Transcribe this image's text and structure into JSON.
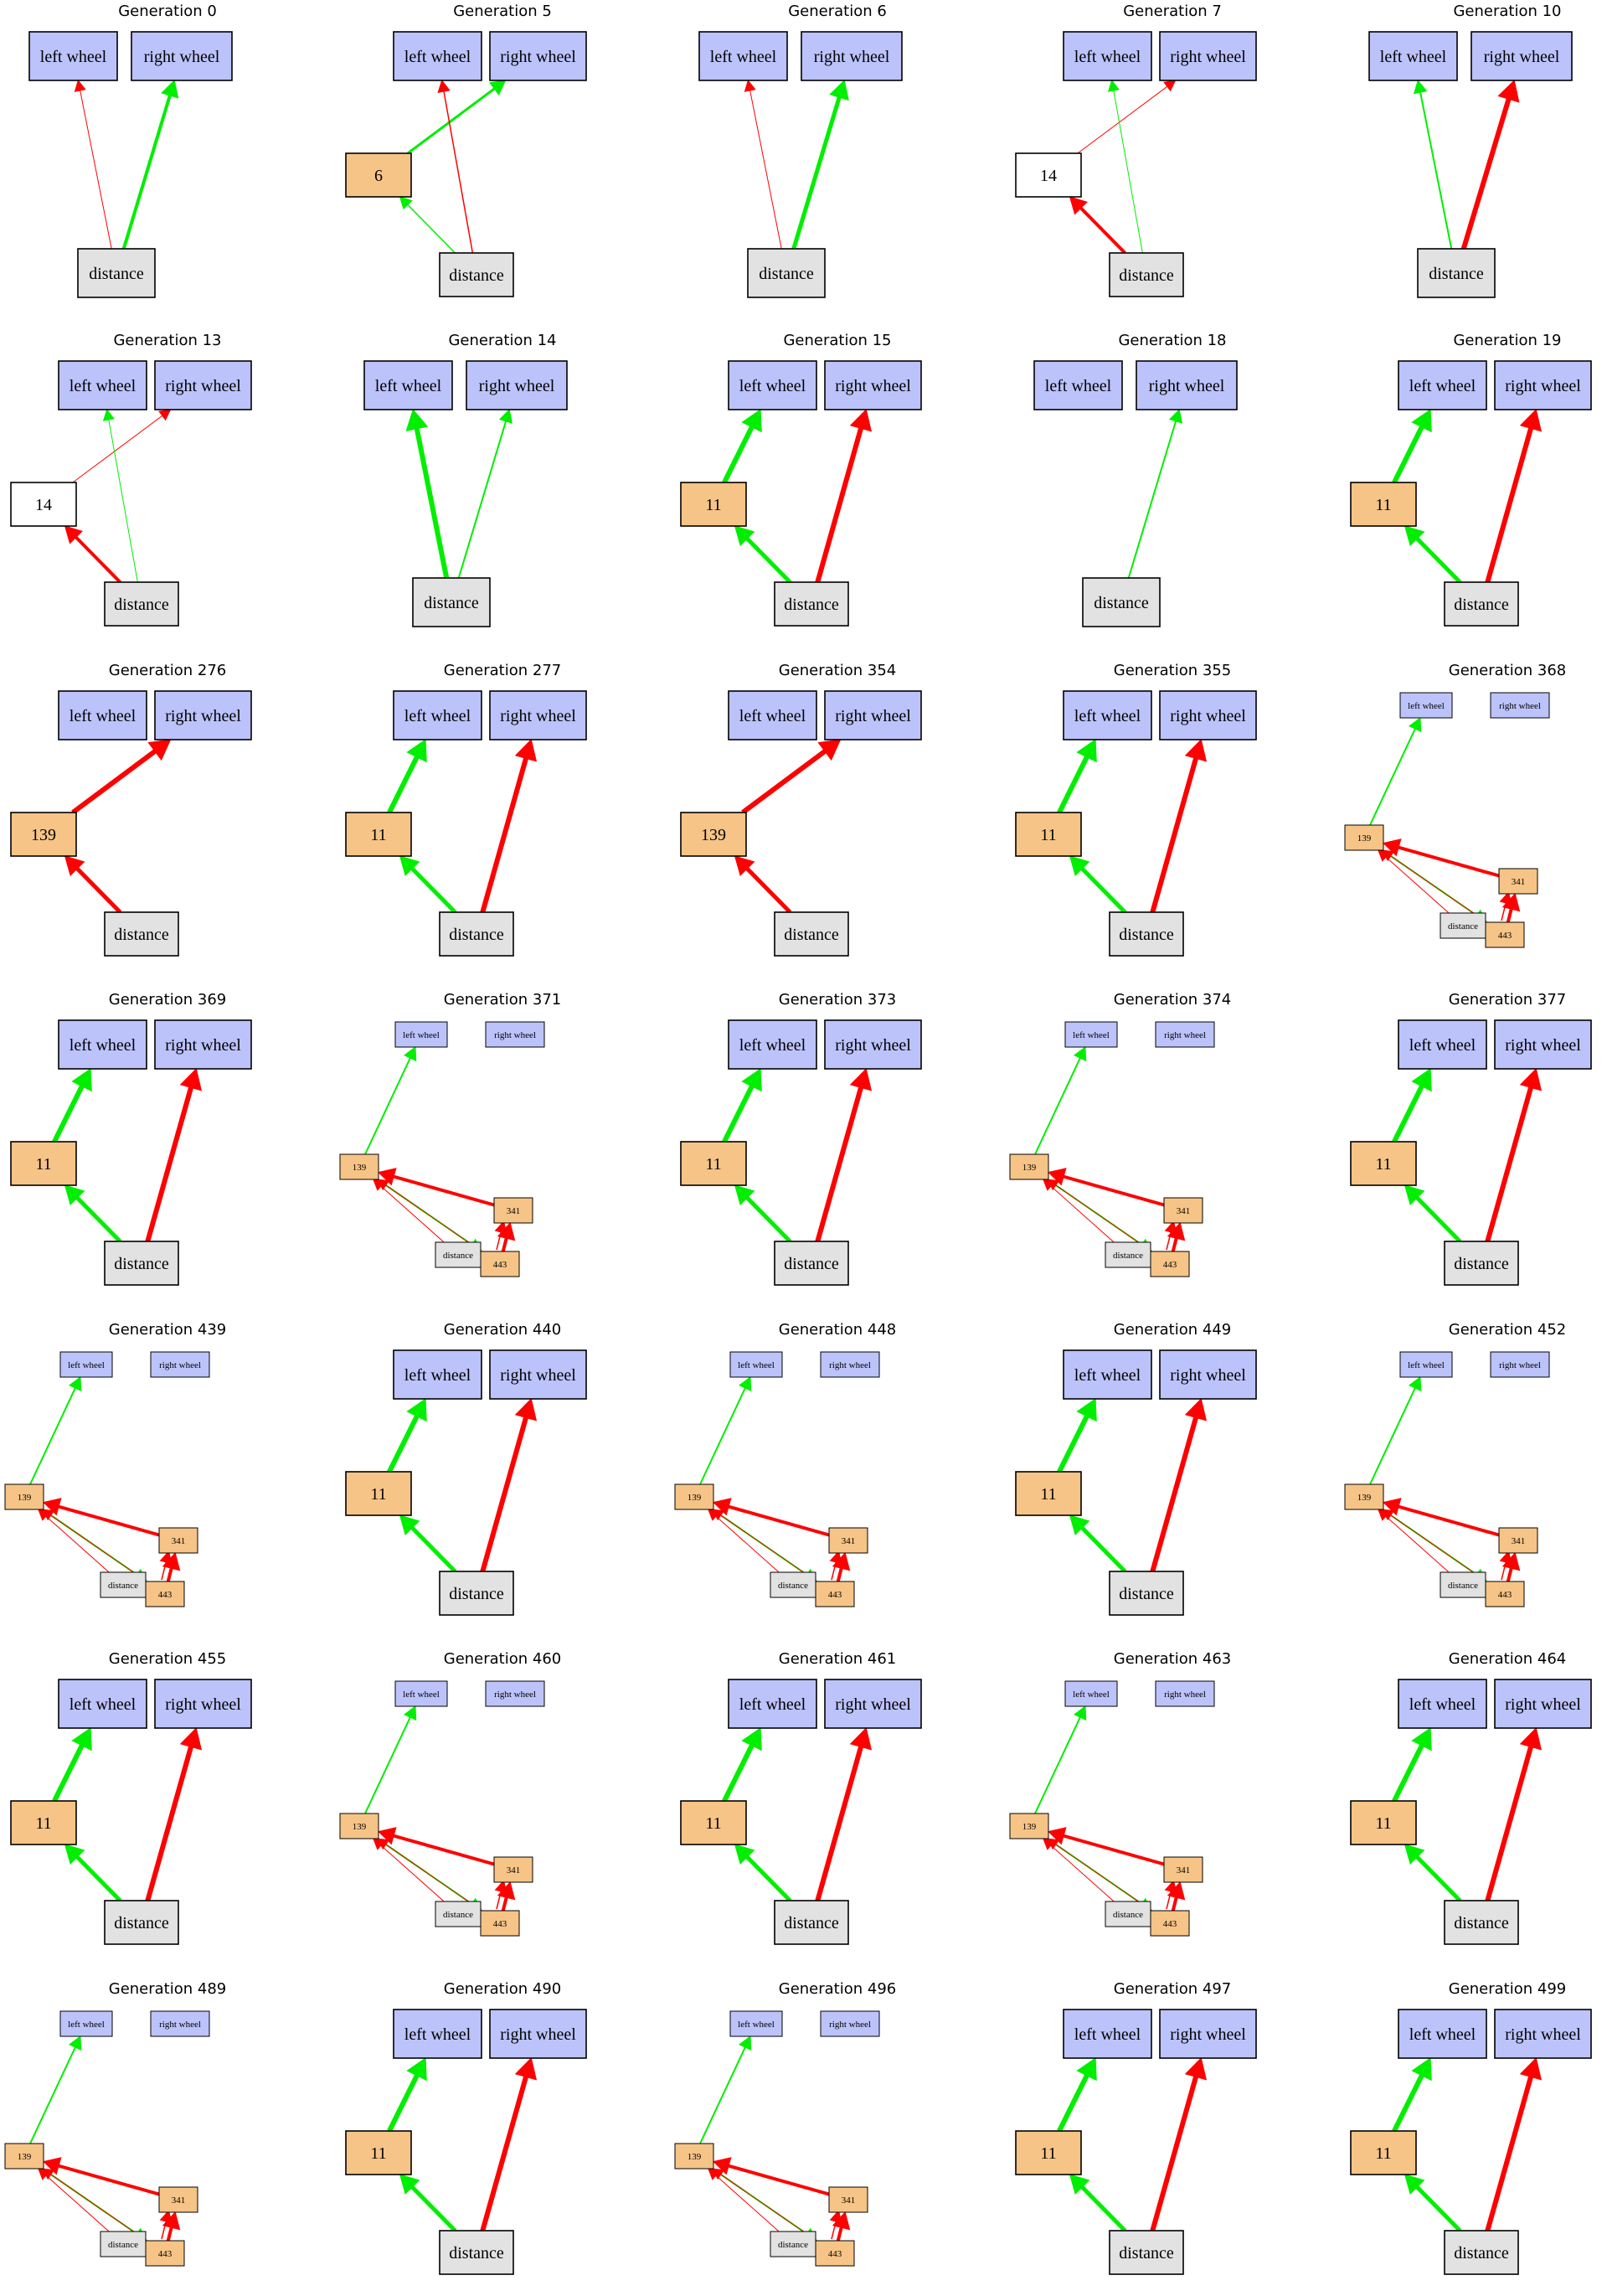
{
  "colors": {
    "output_fill": "#bcc3fb",
    "hidden_fill": "#f6c486",
    "hidden_empty_fill": "#ffffff",
    "input_fill": "#e2e2e2",
    "node_stroke": "#000000",
    "excitatory": "#00ee00",
    "inhibitory": "#ff0000"
  },
  "labels": {
    "left": "left wheel",
    "right": "right wheel",
    "distance": "distance"
  },
  "panels": [
    {
      "title": "Generation 0",
      "layout": "A",
      "edges": [
        {
          "from": "D",
          "to": "L",
          "c": "r",
          "w": 1
        },
        {
          "from": "D",
          "to": "R",
          "c": "g",
          "w": 4
        }
      ]
    },
    {
      "title": "Generation 5",
      "layout": "B",
      "hidden": "6",
      "edges": [
        {
          "from": "H",
          "to": "R",
          "c": "g",
          "w": 3
        },
        {
          "from": "D",
          "to": "L",
          "c": "r",
          "w": 1.5
        },
        {
          "from": "D",
          "to": "H",
          "c": "g",
          "w": 1.5
        }
      ]
    },
    {
      "title": "Generation 6",
      "layout": "A",
      "edges": [
        {
          "from": "D",
          "to": "L",
          "c": "r",
          "w": 1
        },
        {
          "from": "D",
          "to": "R",
          "c": "g",
          "w": 5
        }
      ]
    },
    {
      "title": "Generation 7",
      "layout": "B",
      "hidden": "14",
      "empty": true,
      "edges": [
        {
          "from": "H",
          "to": "R",
          "c": "r",
          "w": 1
        },
        {
          "from": "D",
          "to": "L",
          "c": "g",
          "w": 1
        },
        {
          "from": "D",
          "to": "H",
          "c": "r",
          "w": 4
        }
      ]
    },
    {
      "title": "Generation 10",
      "layout": "A",
      "edges": [
        {
          "from": "D",
          "to": "L",
          "c": "g",
          "w": 2
        },
        {
          "from": "D",
          "to": "R",
          "c": "r",
          "w": 6
        }
      ]
    },
    {
      "title": "Generation 13",
      "layout": "B",
      "hidden": "14",
      "empty": true,
      "edges": [
        {
          "from": "H",
          "to": "R",
          "c": "r",
          "w": 1
        },
        {
          "from": "D",
          "to": "L",
          "c": "g",
          "w": 1
        },
        {
          "from": "D",
          "to": "H",
          "c": "r",
          "w": 4
        }
      ]
    },
    {
      "title": "Generation 14",
      "layout": "A",
      "edges": [
        {
          "from": "D",
          "to": "L",
          "c": "g",
          "w": 6
        },
        {
          "from": "D",
          "to": "R",
          "c": "g",
          "w": 2
        }
      ]
    },
    {
      "title": "Generation 15",
      "layout": "B",
      "hidden": "11",
      "edges": [
        {
          "from": "H",
          "to": "L",
          "c": "g",
          "w": 6
        },
        {
          "from": "D",
          "to": "H",
          "c": "g",
          "w": 5
        },
        {
          "from": "D",
          "to": "R",
          "c": "r",
          "w": 6
        }
      ]
    },
    {
      "title": "Generation 18",
      "layout": "A",
      "edges": [
        {
          "from": "D",
          "to": "R",
          "c": "g",
          "w": 2
        }
      ]
    },
    {
      "title": "Generation 19",
      "layout": "B",
      "hidden": "11",
      "edges": [
        {
          "from": "H",
          "to": "L",
          "c": "g",
          "w": 6
        },
        {
          "from": "D",
          "to": "H",
          "c": "g",
          "w": 5
        },
        {
          "from": "D",
          "to": "R",
          "c": "r",
          "w": 6
        }
      ]
    },
    {
      "title": "Generation 276",
      "layout": "B",
      "hidden": "139",
      "edges": [
        {
          "from": "H",
          "to": "R",
          "c": "r",
          "w": 6
        },
        {
          "from": "D",
          "to": "H",
          "c": "r",
          "w": 5
        }
      ]
    },
    {
      "title": "Generation 277",
      "layout": "B",
      "hidden": "11",
      "edges": [
        {
          "from": "H",
          "to": "L",
          "c": "g",
          "w": 6
        },
        {
          "from": "D",
          "to": "H",
          "c": "g",
          "w": 5
        },
        {
          "from": "D",
          "to": "R",
          "c": "r",
          "w": 6
        }
      ]
    },
    {
      "title": "Generation 354",
      "layout": "B",
      "hidden": "139",
      "edges": [
        {
          "from": "H",
          "to": "R",
          "c": "r",
          "w": 6
        },
        {
          "from": "D",
          "to": "H",
          "c": "r",
          "w": 5
        }
      ]
    },
    {
      "title": "Generation 355",
      "layout": "B",
      "hidden": "11",
      "edges": [
        {
          "from": "H",
          "to": "L",
          "c": "g",
          "w": 6
        },
        {
          "from": "D",
          "to": "H",
          "c": "g",
          "w": 5
        },
        {
          "from": "D",
          "to": "R",
          "c": "r",
          "w": 6
        }
      ]
    },
    {
      "title": "Generation 368",
      "layout": "C",
      "edges": "C_std"
    },
    {
      "title": "Generation 369",
      "layout": "B",
      "hidden": "11",
      "edges": [
        {
          "from": "H",
          "to": "L",
          "c": "g",
          "w": 6
        },
        {
          "from": "D",
          "to": "H",
          "c": "g",
          "w": 5
        },
        {
          "from": "D",
          "to": "R",
          "c": "r",
          "w": 6
        }
      ]
    },
    {
      "title": "Generation 371",
      "layout": "C",
      "edges": "C_std"
    },
    {
      "title": "Generation 373",
      "layout": "B",
      "hidden": "11",
      "edges": [
        {
          "from": "H",
          "to": "L",
          "c": "g",
          "w": 6
        },
        {
          "from": "D",
          "to": "H",
          "c": "g",
          "w": 5
        },
        {
          "from": "D",
          "to": "R",
          "c": "r",
          "w": 6
        }
      ]
    },
    {
      "title": "Generation 374",
      "layout": "C",
      "edges": "C_std"
    },
    {
      "title": "Generation 377",
      "layout": "B",
      "hidden": "11",
      "edges": [
        {
          "from": "H",
          "to": "L",
          "c": "g",
          "w": 6
        },
        {
          "from": "D",
          "to": "H",
          "c": "g",
          "w": 5
        },
        {
          "from": "D",
          "to": "R",
          "c": "r",
          "w": 6
        }
      ]
    },
    {
      "title": "Generation 439",
      "layout": "C",
      "edges": "C_std"
    },
    {
      "title": "Generation 440",
      "layout": "B",
      "hidden": "11",
      "edges": [
        {
          "from": "H",
          "to": "L",
          "c": "g",
          "w": 6
        },
        {
          "from": "D",
          "to": "H",
          "c": "g",
          "w": 5
        },
        {
          "from": "D",
          "to": "R",
          "c": "r",
          "w": 6
        }
      ]
    },
    {
      "title": "Generation 448",
      "layout": "C",
      "edges": "C_std"
    },
    {
      "title": "Generation 449",
      "layout": "B",
      "hidden": "11",
      "edges": [
        {
          "from": "H",
          "to": "L",
          "c": "g",
          "w": 6
        },
        {
          "from": "D",
          "to": "H",
          "c": "g",
          "w": 5
        },
        {
          "from": "D",
          "to": "R",
          "c": "r",
          "w": 6
        }
      ]
    },
    {
      "title": "Generation 452",
      "layout": "C",
      "edges": "C_std"
    },
    {
      "title": "Generation 455",
      "layout": "B",
      "hidden": "11",
      "edges": [
        {
          "from": "H",
          "to": "L",
          "c": "g",
          "w": 6
        },
        {
          "from": "D",
          "to": "H",
          "c": "g",
          "w": 5
        },
        {
          "from": "D",
          "to": "R",
          "c": "r",
          "w": 6
        }
      ]
    },
    {
      "title": "Generation 460",
      "layout": "C",
      "edges": "C_std"
    },
    {
      "title": "Generation 461",
      "layout": "B",
      "hidden": "11",
      "edges": [
        {
          "from": "H",
          "to": "L",
          "c": "g",
          "w": 6
        },
        {
          "from": "D",
          "to": "H",
          "c": "g",
          "w": 5
        },
        {
          "from": "D",
          "to": "R",
          "c": "r",
          "w": 6
        }
      ]
    },
    {
      "title": "Generation 463",
      "layout": "C",
      "edges": "C_std"
    },
    {
      "title": "Generation 464",
      "layout": "B",
      "hidden": "11",
      "edges": [
        {
          "from": "H",
          "to": "L",
          "c": "g",
          "w": 6
        },
        {
          "from": "D",
          "to": "H",
          "c": "g",
          "w": 5
        },
        {
          "from": "D",
          "to": "R",
          "c": "r",
          "w": 6
        }
      ]
    },
    {
      "title": "Generation 489",
      "layout": "C",
      "edges": "C_std"
    },
    {
      "title": "Generation 490",
      "layout": "B",
      "hidden": "11",
      "edges": [
        {
          "from": "H",
          "to": "L",
          "c": "g",
          "w": 6
        },
        {
          "from": "D",
          "to": "H",
          "c": "g",
          "w": 5
        },
        {
          "from": "D",
          "to": "R",
          "c": "r",
          "w": 6
        }
      ]
    },
    {
      "title": "Generation 496",
      "layout": "C",
      "edges": "C_std"
    },
    {
      "title": "Generation 497",
      "layout": "B",
      "hidden": "11",
      "edges": [
        {
          "from": "H",
          "to": "L",
          "c": "g",
          "w": 6
        },
        {
          "from": "D",
          "to": "H",
          "c": "g",
          "w": 5
        },
        {
          "from": "D",
          "to": "R",
          "c": "r",
          "w": 6
        }
      ]
    },
    {
      "title": "Generation 499",
      "layout": "B",
      "hidden": "11",
      "edges": [
        {
          "from": "H",
          "to": "L",
          "c": "g",
          "w": 6
        },
        {
          "from": "D",
          "to": "H",
          "c": "g",
          "w": 5
        },
        {
          "from": "D",
          "to": "R",
          "c": "r",
          "w": 6
        }
      ]
    }
  ],
  "layout_c": {
    "hidden_a": "139",
    "hidden_b": "341",
    "hidden_c": "443",
    "edges": [
      {
        "from": "A",
        "to": "L",
        "c": "g",
        "w": 2
      },
      {
        "from": "B",
        "to": "A",
        "c": "r",
        "w": 4
      },
      {
        "from": "A",
        "to": "C",
        "c": "g",
        "w": 2
      },
      {
        "from": "D",
        "to": "A",
        "c": "r",
        "w": 1
      },
      {
        "from": "C",
        "to": "A",
        "c": "r",
        "w": 1
      },
      {
        "from": "D",
        "to": "C",
        "c": "g",
        "w": 1
      },
      {
        "from": "C",
        "to": "B",
        "c": "r",
        "w": 4
      },
      {
        "from": "C",
        "to": "B",
        "c": "r",
        "w": 1.5,
        "off": true
      }
    ]
  }
}
